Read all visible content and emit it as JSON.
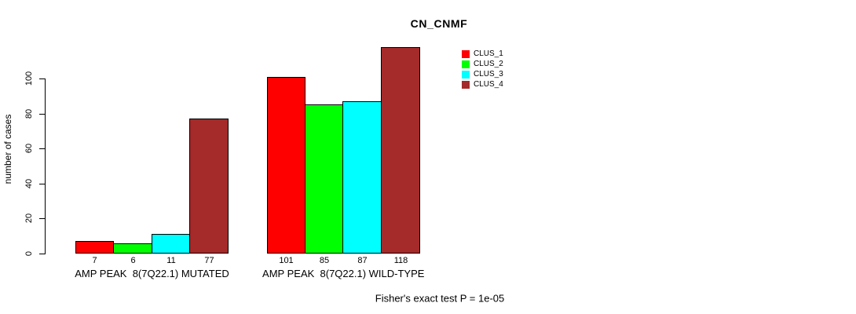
{
  "chart_data": {
    "type": "bar",
    "title": "CN_CNMF",
    "ylabel": "number of cases",
    "xlabel": "",
    "yticks": [
      0,
      20,
      40,
      60,
      80,
      100
    ],
    "ylim": [
      0,
      118
    ],
    "grid": false,
    "legend_position": "top-right",
    "categories": [
      "AMP PEAK  8(7Q22.1) MUTATED",
      "AMP PEAK  8(7Q22.1) WILD-TYPE"
    ],
    "series": [
      {
        "name": "CLUS_1",
        "color": "#FF0000",
        "values": [
          7,
          101
        ]
      },
      {
        "name": "CLUS_2",
        "color": "#00FF00",
        "values": [
          6,
          85
        ]
      },
      {
        "name": "CLUS_3",
        "color": "#00FFFF",
        "values": [
          11,
          87
        ]
      },
      {
        "name": "CLUS_4",
        "color": "#A52A2A",
        "values": [
          77,
          118
        ]
      }
    ],
    "bar_value_labels": true,
    "annotation": "Fisher's exact test P = 1e-05"
  }
}
